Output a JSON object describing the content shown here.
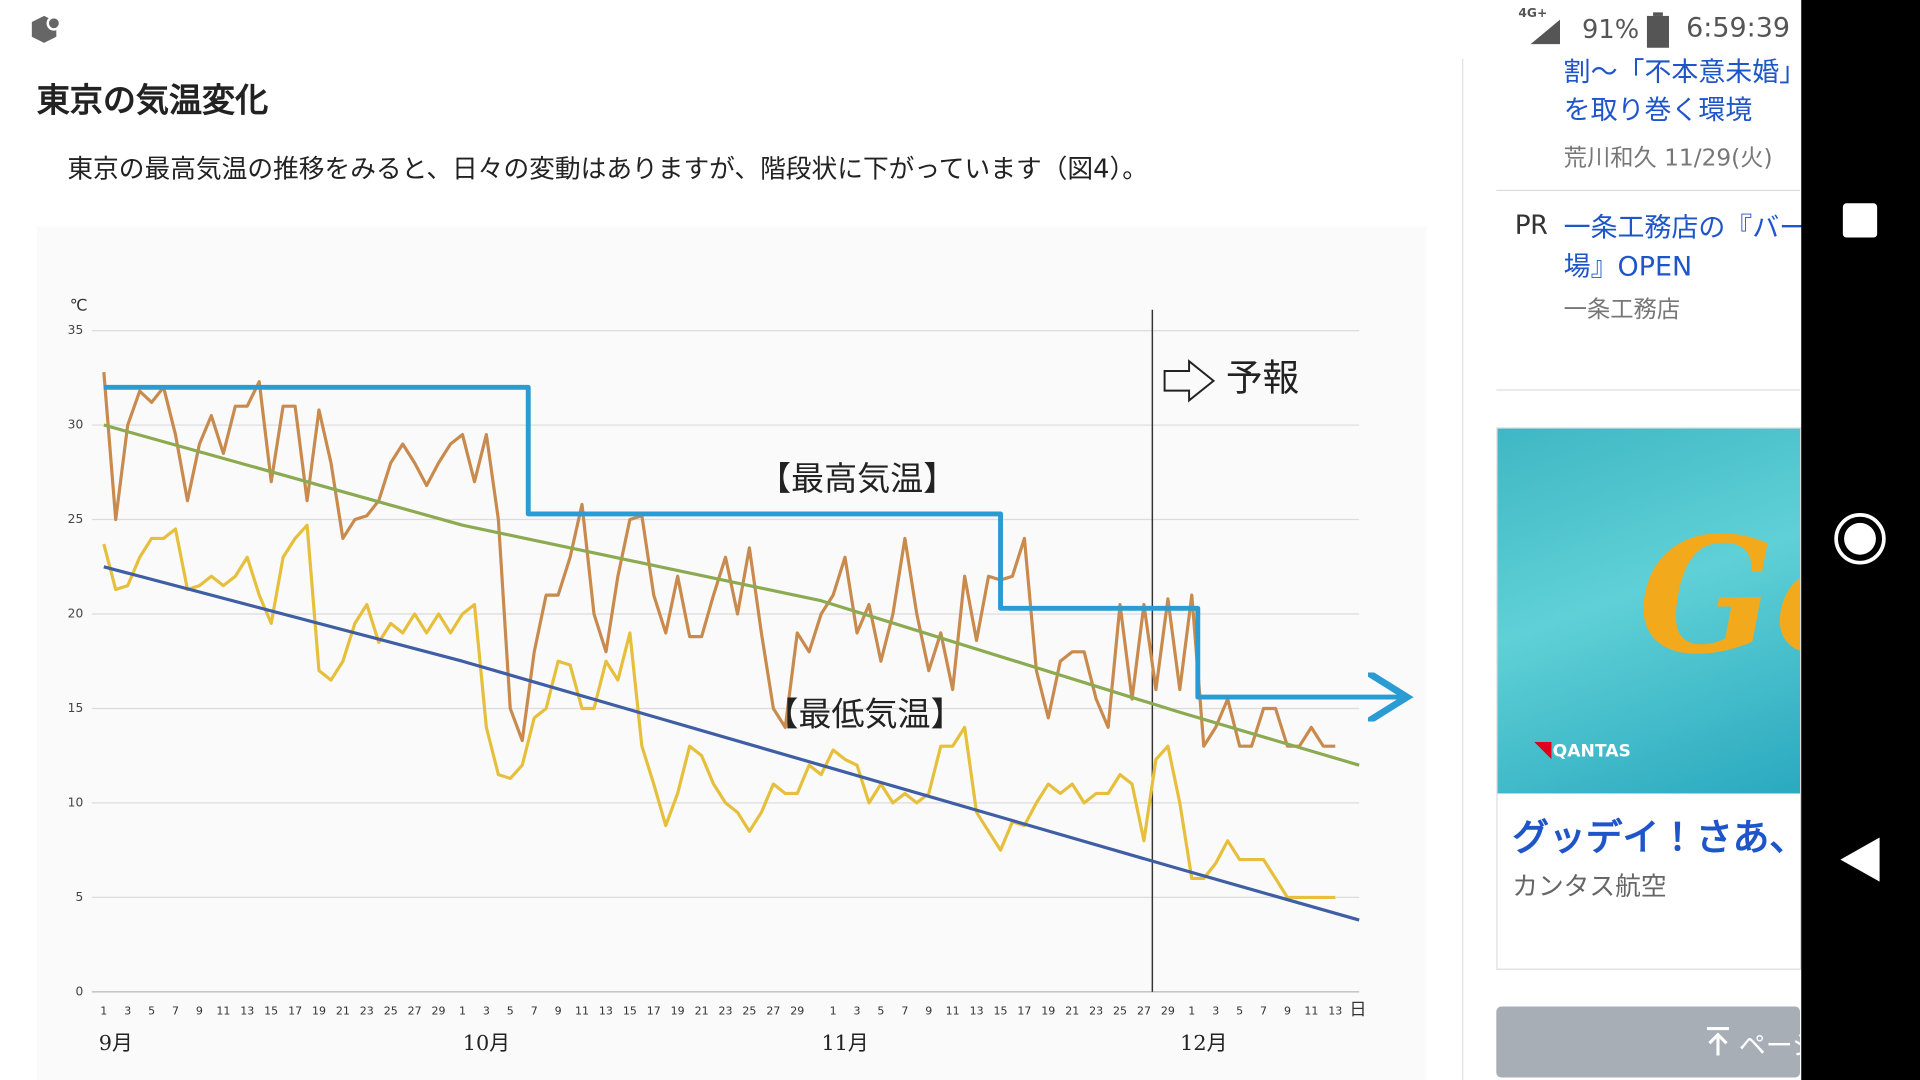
{
  "status_bar": {
    "network": "4G+",
    "battery": "91%",
    "time": "6:59:39"
  },
  "article": {
    "heading": "東京の気温変化",
    "paragraph": "東京の最高気温の推移をみると、日々の変動はありますが、階段状に下がっています（図4）。"
  },
  "chart_data": {
    "type": "line",
    "y_unit": "℃",
    "x_unit": "日",
    "xlim": [
      -1,
      105
    ],
    "ylim": [
      0,
      35
    ],
    "yticks": [
      0,
      5,
      10,
      15,
      20,
      25,
      30,
      35
    ],
    "grid": true,
    "xticks": [
      {
        "value": 0,
        "label": "1"
      },
      {
        "value": 2,
        "label": "3"
      },
      {
        "value": 4,
        "label": "5"
      },
      {
        "value": 6,
        "label": "7"
      },
      {
        "value": 8,
        "label": "9"
      },
      {
        "value": 10,
        "label": "11"
      },
      {
        "value": 12,
        "label": "13"
      },
      {
        "value": 14,
        "label": "15"
      },
      {
        "value": 16,
        "label": "17"
      },
      {
        "value": 18,
        "label": "19"
      },
      {
        "value": 20,
        "label": "21"
      },
      {
        "value": 22,
        "label": "23"
      },
      {
        "value": 24,
        "label": "25"
      },
      {
        "value": 26,
        "label": "27"
      },
      {
        "value": 28,
        "label": "29"
      },
      {
        "value": 30,
        "label": "1"
      },
      {
        "value": 32,
        "label": "3"
      },
      {
        "value": 34,
        "label": "5"
      },
      {
        "value": 36,
        "label": "7"
      },
      {
        "value": 38,
        "label": "9"
      },
      {
        "value": 40,
        "label": "11"
      },
      {
        "value": 42,
        "label": "13"
      },
      {
        "value": 44,
        "label": "15"
      },
      {
        "value": 46,
        "label": "17"
      },
      {
        "value": 48,
        "label": "19"
      },
      {
        "value": 50,
        "label": "21"
      },
      {
        "value": 52,
        "label": "23"
      },
      {
        "value": 54,
        "label": "25"
      },
      {
        "value": 56,
        "label": "27"
      },
      {
        "value": 58,
        "label": "29"
      },
      {
        "value": 61,
        "label": "1"
      },
      {
        "value": 63,
        "label": "3"
      },
      {
        "value": 65,
        "label": "5"
      },
      {
        "value": 67,
        "label": "7"
      },
      {
        "value": 69,
        "label": "9"
      },
      {
        "value": 71,
        "label": "11"
      },
      {
        "value": 73,
        "label": "13"
      },
      {
        "value": 75,
        "label": "15"
      },
      {
        "value": 77,
        "label": "17"
      },
      {
        "value": 79,
        "label": "19"
      },
      {
        "value": 81,
        "label": "21"
      },
      {
        "value": 83,
        "label": "23"
      },
      {
        "value": 85,
        "label": "25"
      },
      {
        "value": 87,
        "label": "27"
      },
      {
        "value": 89,
        "label": "29"
      },
      {
        "value": 91,
        "label": "1"
      },
      {
        "value": 93,
        "label": "3"
      },
      {
        "value": 95,
        "label": "5"
      },
      {
        "value": 97,
        "label": "7"
      },
      {
        "value": 99,
        "label": "9"
      },
      {
        "value": 101,
        "label": "11"
      },
      {
        "value": 103,
        "label": "13"
      }
    ],
    "month_labels": [
      {
        "value": 1,
        "label": "9月"
      },
      {
        "value": 32,
        "label": "10月"
      },
      {
        "value": 62,
        "label": "11月"
      },
      {
        "value": 92,
        "label": "12月"
      }
    ],
    "x": [
      0,
      1,
      2,
      3,
      4,
      5,
      6,
      7,
      8,
      9,
      10,
      11,
      12,
      13,
      14,
      15,
      16,
      17,
      18,
      19,
      20,
      21,
      22,
      23,
      24,
      25,
      26,
      27,
      28,
      29,
      30,
      31,
      32,
      33,
      34,
      35,
      36,
      37,
      38,
      39,
      40,
      41,
      42,
      43,
      44,
      45,
      46,
      47,
      48,
      49,
      50,
      51,
      52,
      53,
      54,
      55,
      56,
      57,
      58,
      59,
      60,
      61,
      62,
      63,
      64,
      65,
      66,
      67,
      68,
      69,
      70,
      71,
      72,
      73,
      74,
      75,
      76,
      77,
      78,
      79,
      80,
      81,
      82,
      83,
      84,
      85,
      86,
      87,
      88,
      89,
      90,
      91,
      92,
      93,
      94,
      95,
      96,
      97,
      98,
      99,
      100,
      101,
      102,
      103
    ],
    "series": [
      {
        "color": "#c98a4e",
        "values": [
          32.8,
          25,
          30,
          31.8,
          31.2,
          32,
          29.5,
          26,
          29,
          30.5,
          28.5,
          31,
          31,
          32.3,
          27,
          31,
          31,
          26,
          30.8,
          28,
          24,
          25,
          25.2,
          26,
          28,
          29,
          28,
          26.8,
          28,
          29,
          29.5,
          27,
          29.5,
          25,
          15,
          13.3,
          18,
          21,
          21,
          23,
          25.8,
          20,
          18,
          22,
          25,
          25.2,
          21,
          19,
          22,
          18.8,
          18.8,
          21,
          23,
          20,
          23.5,
          19,
          15,
          14,
          19,
          18,
          20,
          21,
          23,
          19,
          20.5,
          17.5,
          20,
          24,
          20,
          17,
          19,
          16,
          22,
          18.6,
          22,
          21.8,
          22,
          24,
          17,
          14.5,
          17.5,
          18,
          18,
          15.5,
          14,
          20.5,
          15.5,
          20.5,
          16,
          20.8,
          16,
          21,
          13,
          14,
          15.5,
          13,
          13,
          15,
          15,
          13,
          13,
          14,
          13,
          13
        ]
      },
      {
        "color": "#e6bf3c",
        "values": [
          23.7,
          21.3,
          21.5,
          23,
          24,
          24,
          24.5,
          21.3,
          21.5,
          22,
          21.5,
          22,
          23,
          21,
          19.5,
          23,
          24,
          24.7,
          17,
          16.5,
          17.5,
          19.5,
          20.5,
          18.5,
          19.5,
          19,
          20,
          19,
          20,
          19,
          20,
          20.5,
          14,
          11.5,
          11.3,
          12,
          14.5,
          15,
          17.5,
          17.3,
          15,
          15,
          17.5,
          16.5,
          19,
          13,
          11,
          8.8,
          10.5,
          13,
          12.5,
          11,
          10,
          9.5,
          8.5,
          9.5,
          11,
          10.5,
          10.5,
          12,
          11.5,
          12.8,
          12.3,
          12,
          10,
          11,
          10,
          10.5,
          10,
          10.5,
          13,
          13,
          14,
          9.5,
          8.5,
          7.5,
          9,
          8.8,
          10,
          11,
          10.5,
          11,
          10,
          10.5,
          10.5,
          11.5,
          11,
          8,
          12.3,
          13,
          10,
          6,
          6,
          6.8,
          8,
          7,
          7,
          7,
          6,
          5,
          5,
          5,
          5,
          5
        ]
      },
      {
        "color": "#8caa52",
        "x": [
          0,
          30,
          60,
          90,
          105
        ],
        "values": [
          30,
          24.7,
          20.7,
          14.8,
          12
        ]
      },
      {
        "color": "#3f5ea3",
        "x": [
          0,
          30,
          60,
          90,
          105
        ],
        "values": [
          22.5,
          17.5,
          12,
          6.5,
          3.8
        ]
      },
      {
        "color": "#2a9bd3",
        "arrow": true,
        "x": [
          0,
          35.5,
          35.5,
          75,
          75,
          91.5,
          91.5,
          109
        ],
        "values": [
          32,
          32,
          25.3,
          25.3,
          20.3,
          20.3,
          15.6,
          15.6
        ]
      }
    ],
    "annotations": [
      {
        "text": "【最高気温】"
      },
      {
        "text": "【最低気温】"
      },
      {
        "text": "予報",
        "x": 87.7
      }
    ]
  },
  "sidebar": {
    "items": [
      {
        "title_lines": [
          "割〜「不本意未婚」",
          "を取り巻く環境"
        ],
        "meta": "荒川和久 11/29(火)"
      },
      {
        "badge": "PR",
        "title_lines": [
          "一条工務店の『バー",
          "場』OPEN"
        ],
        "meta": "一条工務店"
      }
    ],
    "ad": {
      "brand_big": "Go",
      "logo": "QANTAS",
      "title": "グッデイ！さあ、",
      "advertiser": "カンタス航空"
    },
    "button": "ページ"
  }
}
